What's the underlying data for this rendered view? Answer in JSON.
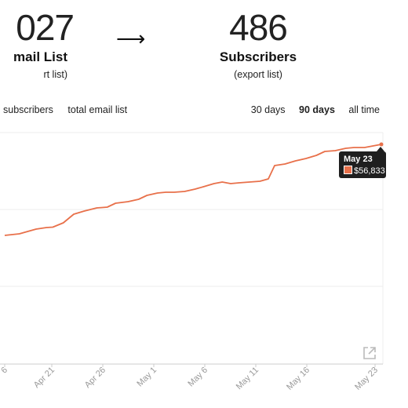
{
  "stats": {
    "left": {
      "number": "027",
      "label": "mail List",
      "sub": "rt list)"
    },
    "arrow": "⟶",
    "right": {
      "number": "486",
      "label": "Subscribers",
      "sub": "(export list)"
    }
  },
  "tabs": {
    "left": [
      "subscribers",
      "total email list"
    ],
    "right": [
      {
        "label": "30 days",
        "active": false
      },
      {
        "label": "90 days",
        "active": true
      },
      {
        "label": "all time",
        "active": false
      }
    ]
  },
  "tooltip": {
    "date": "May 23",
    "value": "$56,833"
  },
  "icons": {
    "expand": "expand-icon"
  },
  "colors": {
    "line": "#e8704a",
    "grid": "#ececec",
    "axis": "#cccccc",
    "tick_text": "#9a9a9a"
  },
  "chart_data": {
    "type": "line",
    "x_ticks": [
      "6",
      "Apr 21",
      "Apr 26",
      "May 1",
      "May 6",
      "May 11",
      "May 16",
      "May 23"
    ],
    "series": [
      {
        "values": [
          [
            0,
            300
          ],
          [
            0.7,
            298
          ],
          [
            1.1,
            295
          ],
          [
            1.5,
            292
          ],
          [
            2.0,
            290
          ],
          [
            2.3,
            289.5
          ],
          [
            2.8,
            284
          ],
          [
            3.3,
            273
          ],
          [
            3.8,
            269
          ],
          [
            4.4,
            265
          ],
          [
            4.9,
            264
          ],
          [
            5.3,
            259
          ],
          [
            5.9,
            257
          ],
          [
            6.4,
            254
          ],
          [
            6.8,
            249
          ],
          [
            7.3,
            246
          ],
          [
            7.7,
            245
          ],
          [
            8.1,
            245
          ],
          [
            8.6,
            244
          ],
          [
            9.1,
            241
          ],
          [
            9.5,
            238
          ],
          [
            10.0,
            234
          ],
          [
            10.4,
            232
          ],
          [
            10.8,
            234
          ],
          [
            11.2,
            233
          ],
          [
            11.7,
            232
          ],
          [
            12.2,
            231
          ],
          [
            12.6,
            228
          ],
          [
            12.9,
            211
          ],
          [
            13.4,
            209
          ],
          [
            13.9,
            205
          ],
          [
            14.4,
            202
          ],
          [
            14.9,
            198
          ],
          [
            15.3,
            193
          ],
          [
            15.8,
            192
          ],
          [
            16.3,
            189
          ],
          [
            16.7,
            188
          ],
          [
            17.2,
            188
          ],
          [
            17.6,
            186
          ],
          [
            18.0,
            184
          ]
        ]
      }
    ],
    "grid": true
  }
}
